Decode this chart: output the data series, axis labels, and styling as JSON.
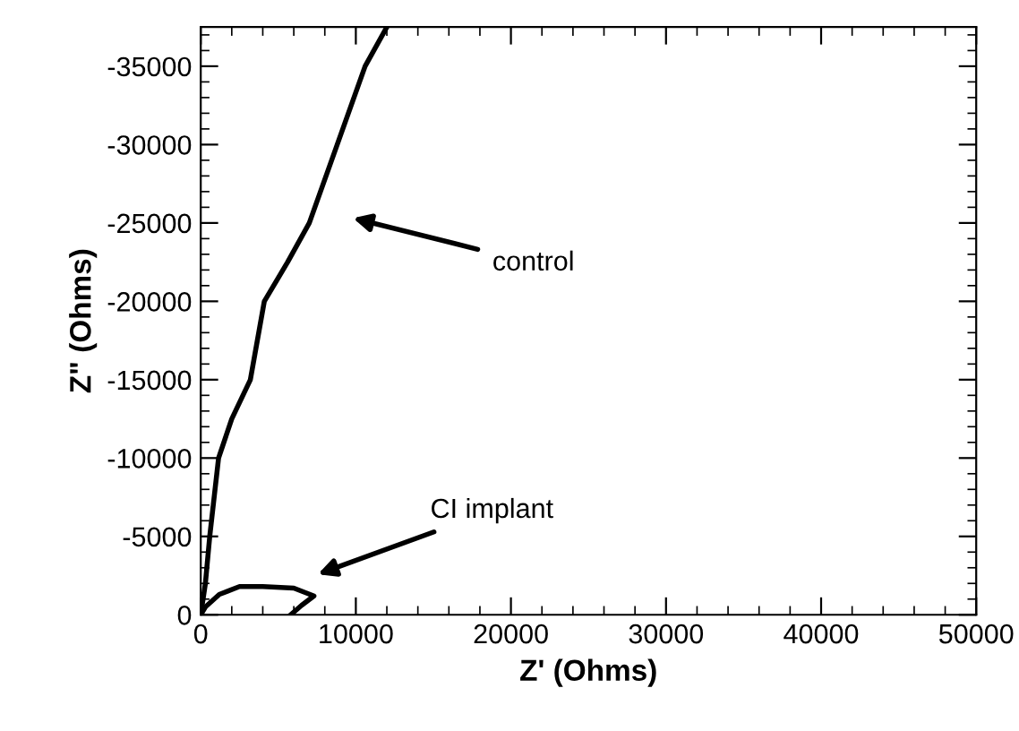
{
  "chart_data": {
    "type": "line",
    "xlabel": "Z' (Ohms)",
    "ylabel": "Z\" (Ohms)",
    "series": [
      {
        "color": "#000000",
        "x": [
          0,
          300,
          580,
          1150,
          2000,
          3200,
          4100,
          5600,
          7000,
          8800,
          10600,
          12000
        ],
        "values": [
          0,
          -2000,
          -5000,
          -10000,
          -12500,
          -15000,
          -20000,
          -22500,
          -25000,
          -30000,
          -35000,
          -37500
        ]
      },
      {
        "color": "#000000",
        "x": [
          0,
          300,
          1200,
          2500,
          4000,
          6000,
          7300,
          6500,
          5800
        ],
        "values": [
          0,
          -500,
          -1300,
          -1800,
          -1800,
          -1700,
          -1200,
          -600,
          0
        ]
      }
    ],
    "xlim": [
      0,
      50000
    ],
    "xticks": [
      0,
      10000,
      20000,
      30000,
      40000,
      50000
    ],
    "ylim": [
      0,
      -37500
    ],
    "yticks": [
      0,
      -5000,
      -10000,
      -15000,
      -20000,
      -25000,
      -30000,
      -35000
    ],
    "annotations": [
      "control",
      "CI implant"
    ],
    "grid": false,
    "legend": false,
    "marker": "none",
    "line_style": "solid"
  }
}
